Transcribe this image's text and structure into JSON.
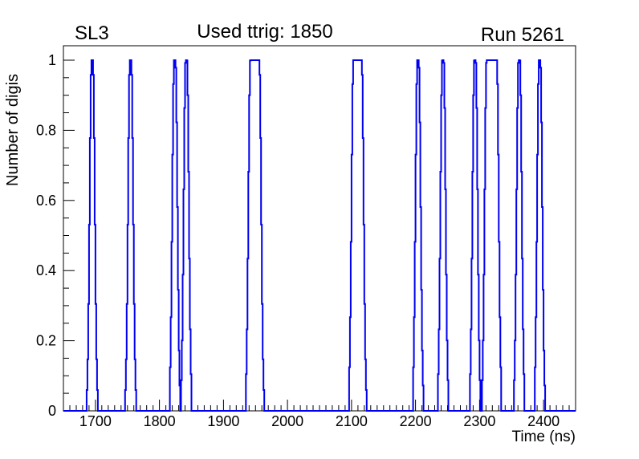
{
  "header": {
    "left_label": "SL3",
    "center_label": "Used ttrig: 1850",
    "right_label": "Run 5261"
  },
  "chart_data": {
    "type": "line",
    "subtype": "step-histogram",
    "title": "Used ttrig: 1850",
    "corner_labels": {
      "left": "SL3",
      "right": "Run 5261"
    },
    "xlabel": "Time (ns)",
    "ylabel": "Number of digis",
    "xlim": [
      1650,
      2450
    ],
    "ylim": [
      0,
      1.045
    ],
    "x_major_ticks": [
      1700,
      1800,
      1900,
      2000,
      2100,
      2200,
      2300,
      2400
    ],
    "x_minor_step": 10,
    "y_major_ticks": [
      0,
      0.2,
      0.4,
      0.6,
      0.8,
      1
    ],
    "y_major_tick_labels": [
      "0",
      "0.2",
      "0.4",
      "0.6",
      "0.8",
      "1"
    ],
    "y_minor_step": 0.05,
    "grid": false,
    "legend": false,
    "line_color": "#0000f0",
    "axis_color": "#000000",
    "background_color": "#ffffff",
    "peak_height": 1,
    "bin_ns": 1.25,
    "sigma_ns": 3.0,
    "peaks": [
      {
        "start": 1695,
        "end": 1695
      },
      {
        "start": 1755,
        "end": 1755
      },
      {
        "start": 1824,
        "end": 1824
      },
      {
        "start": 1842,
        "end": 1842
      },
      {
        "start": 1943,
        "end": 1955
      },
      {
        "start": 2104,
        "end": 2115
      },
      {
        "start": 2204,
        "end": 2204
      },
      {
        "start": 2243,
        "end": 2243
      },
      {
        "start": 2293,
        "end": 2293
      },
      {
        "start": 2312,
        "end": 2326
      },
      {
        "start": 2362,
        "end": 2362
      },
      {
        "start": 2394,
        "end": 2394
      }
    ]
  }
}
